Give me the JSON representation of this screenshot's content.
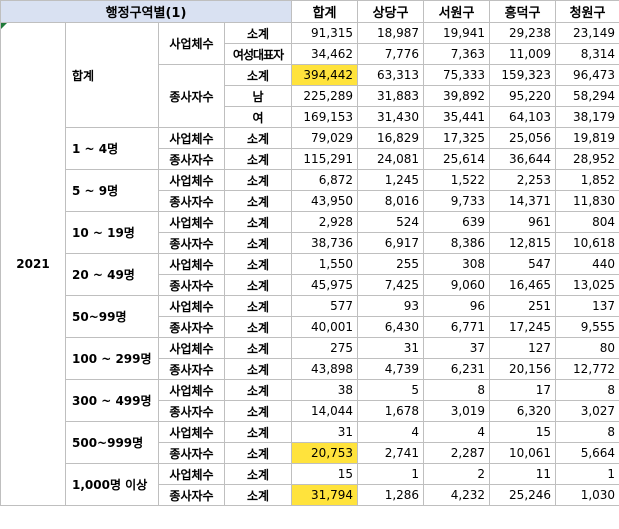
{
  "header": {
    "title": "행정구역별(1)",
    "columns": [
      "합계",
      "상당구",
      "서원구",
      "흥덕구",
      "청원구"
    ]
  },
  "year": "2021",
  "labels": {
    "est": "사업체수",
    "emp": "종사자수",
    "subtotal": "소계",
    "female_rep": "여성대표자",
    "male": "남",
    "female": "여"
  },
  "groups": [
    {
      "name": "합계",
      "rows": [
        {
          "cat": "est",
          "sub": "subtotal",
          "values": [
            "91,315",
            "18,987",
            "19,941",
            "29,238",
            "23,149"
          ]
        },
        {
          "cat": "est",
          "sub": "female_rep",
          "values": [
            "34,462",
            "7,776",
            "7,363",
            "11,009",
            "8,314"
          ]
        },
        {
          "cat": "emp",
          "sub": "subtotal",
          "values": [
            "394,442",
            "63,313",
            "75,333",
            "159,323",
            "96,473"
          ],
          "highlight_total": true
        },
        {
          "cat": "emp",
          "sub": "male",
          "values": [
            "225,289",
            "31,883",
            "39,892",
            "95,220",
            "58,294"
          ]
        },
        {
          "cat": "emp",
          "sub": "female",
          "values": [
            "169,153",
            "31,430",
            "35,441",
            "64,103",
            "38,179"
          ]
        }
      ]
    },
    {
      "name": "1 ~ 4명",
      "rows": [
        {
          "cat": "est",
          "sub": "subtotal",
          "values": [
            "79,029",
            "16,829",
            "17,325",
            "25,056",
            "19,819"
          ]
        },
        {
          "cat": "emp",
          "sub": "subtotal",
          "values": [
            "115,291",
            "24,081",
            "25,614",
            "36,644",
            "28,952"
          ]
        }
      ]
    },
    {
      "name": "5 ~ 9명",
      "rows": [
        {
          "cat": "est",
          "sub": "subtotal",
          "values": [
            "6,872",
            "1,245",
            "1,522",
            "2,253",
            "1,852"
          ]
        },
        {
          "cat": "emp",
          "sub": "subtotal",
          "values": [
            "43,950",
            "8,016",
            "9,733",
            "14,371",
            "11,830"
          ]
        }
      ]
    },
    {
      "name": "10 ~ 19명",
      "rows": [
        {
          "cat": "est",
          "sub": "subtotal",
          "values": [
            "2,928",
            "524",
            "639",
            "961",
            "804"
          ]
        },
        {
          "cat": "emp",
          "sub": "subtotal",
          "values": [
            "38,736",
            "6,917",
            "8,386",
            "12,815",
            "10,618"
          ]
        }
      ]
    },
    {
      "name": "20 ~ 49명",
      "rows": [
        {
          "cat": "est",
          "sub": "subtotal",
          "values": [
            "1,550",
            "255",
            "308",
            "547",
            "440"
          ]
        },
        {
          "cat": "emp",
          "sub": "subtotal",
          "values": [
            "45,975",
            "7,425",
            "9,060",
            "16,465",
            "13,025"
          ]
        }
      ]
    },
    {
      "name": "50~99명",
      "rows": [
        {
          "cat": "est",
          "sub": "subtotal",
          "values": [
            "577",
            "93",
            "96",
            "251",
            "137"
          ]
        },
        {
          "cat": "emp",
          "sub": "subtotal",
          "values": [
            "40,001",
            "6,430",
            "6,771",
            "17,245",
            "9,555"
          ]
        }
      ]
    },
    {
      "name": "100 ~ 299명",
      "rows": [
        {
          "cat": "est",
          "sub": "subtotal",
          "values": [
            "275",
            "31",
            "37",
            "127",
            "80"
          ]
        },
        {
          "cat": "emp",
          "sub": "subtotal",
          "values": [
            "43,898",
            "4,739",
            "6,231",
            "20,156",
            "12,772"
          ]
        }
      ]
    },
    {
      "name": "300 ~ 499명",
      "rows": [
        {
          "cat": "est",
          "sub": "subtotal",
          "values": [
            "38",
            "5",
            "8",
            "17",
            "8"
          ]
        },
        {
          "cat": "emp",
          "sub": "subtotal",
          "values": [
            "14,044",
            "1,678",
            "3,019",
            "6,320",
            "3,027"
          ]
        }
      ]
    },
    {
      "name": "500~999명",
      "rows": [
        {
          "cat": "est",
          "sub": "subtotal",
          "values": [
            "31",
            "4",
            "4",
            "15",
            "8"
          ]
        },
        {
          "cat": "emp",
          "sub": "subtotal",
          "values": [
            "20,753",
            "2,741",
            "2,287",
            "10,061",
            "5,664"
          ],
          "highlight_total": true
        }
      ]
    },
    {
      "name": "1,000명 이상",
      "rows": [
        {
          "cat": "est",
          "sub": "subtotal",
          "values": [
            "15",
            "1",
            "2",
            "11",
            "1"
          ]
        },
        {
          "cat": "emp",
          "sub": "subtotal",
          "values": [
            "31,794",
            "1,286",
            "4,232",
            "25,246",
            "1,030"
          ],
          "highlight_total": true
        }
      ]
    }
  ],
  "colors": {
    "header_bg": "#d9e1f2",
    "highlight": "#ffe33c",
    "grid": "#bfbfbf"
  }
}
